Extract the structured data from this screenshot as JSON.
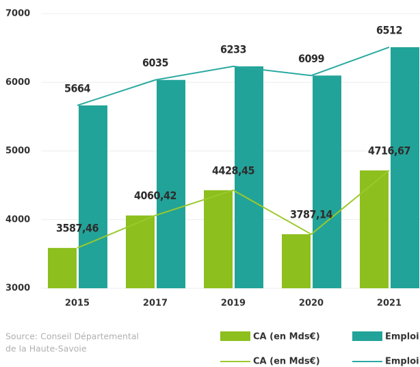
{
  "chart_data": {
    "type": "bar",
    "categories": [
      "2015",
      "2017",
      "2019",
      "2020",
      "2021"
    ],
    "series": [
      {
        "name": "CA (en Mds€)",
        "color": "#8dbf1e",
        "line_color": "#9bc92c",
        "values": [
          3587.46,
          4060.42,
          4428.45,
          3787.14,
          4716.67
        ],
        "value_labels": [
          "3587,46",
          "4060,42",
          "4428,45",
          "3787,14",
          "4716,67"
        ]
      },
      {
        "name": "Emploi",
        "color": "#22a399",
        "line_color": "#2aa9a0",
        "values": [
          5664,
          6035,
          6233,
          6099,
          6512
        ]
      }
    ],
    "ylim": [
      3000,
      7000
    ],
    "yticks": [
      3000,
      4000,
      5000,
      6000,
      7000
    ],
    "grid": true,
    "source": [
      "Source: Conseil Départemental",
      "de la Haute-Savoie"
    ]
  }
}
